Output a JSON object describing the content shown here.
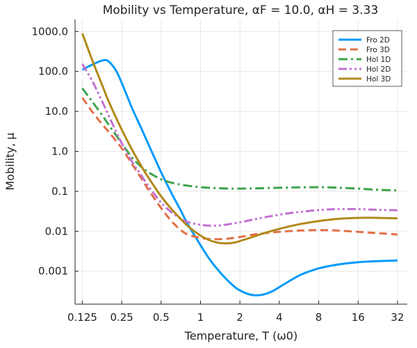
{
  "chart_data": {
    "type": "line",
    "title": "Mobility vs Temperature, αF = 10.0, αH = 3.33",
    "xlabel": "Temperature, T (ω0)",
    "ylabel": "Mobility, μ",
    "xscale": "log2",
    "yscale": "log10",
    "xlim": [
      0.11,
      38
    ],
    "ylim": [
      0.00015,
      2000
    ],
    "grid": true,
    "legend_position": "top-right",
    "x_ticks": [
      {
        "value": 0.125,
        "label": "0.125"
      },
      {
        "value": 0.25,
        "label": "0.25"
      },
      {
        "value": 0.5,
        "label": "0.5"
      },
      {
        "value": 1,
        "label": "1"
      },
      {
        "value": 2,
        "label": "2"
      },
      {
        "value": 4,
        "label": "4"
      },
      {
        "value": 8,
        "label": "8"
      },
      {
        "value": 16,
        "label": "16"
      },
      {
        "value": 32,
        "label": "32"
      }
    ],
    "y_ticks": [
      {
        "value": 0.001,
        "label": "0.001"
      },
      {
        "value": 0.01,
        "label": "0.01"
      },
      {
        "value": 0.1,
        "label": "0.1"
      },
      {
        "value": 1,
        "label": "1.0"
      },
      {
        "value": 10,
        "label": "10.0"
      },
      {
        "value": 100,
        "label": "100.0"
      },
      {
        "value": 1000,
        "label": "1000.0"
      }
    ],
    "series": [
      {
        "name": "Fro 2D",
        "color": "#009AFA",
        "dash": "solid",
        "x": [
          0.125,
          0.15,
          0.18,
          0.2,
          0.23,
          0.27,
          0.3,
          0.35,
          0.4,
          0.5,
          0.6,
          0.7,
          0.8,
          1.0,
          1.2,
          1.5,
          1.8,
          2.0,
          2.3,
          2.6,
          3.0,
          3.5,
          4.0,
          5.0,
          6.0,
          8.0,
          10.0,
          12.0,
          16.0,
          20.0,
          25.0,
          32.0
        ],
        "y": [
          110,
          150,
          190,
          175,
          95,
          28,
          12,
          4.0,
          1.5,
          0.3,
          0.09,
          0.035,
          0.015,
          0.0045,
          0.0018,
          0.00075,
          0.00042,
          0.00033,
          0.00027,
          0.00025,
          0.00026,
          0.00031,
          0.0004,
          0.00062,
          0.00085,
          0.00118,
          0.00138,
          0.00152,
          0.00168,
          0.00176,
          0.00181,
          0.00186
        ]
      },
      {
        "name": "Fro 3D",
        "color": "#E26F46",
        "dash": "dashed",
        "x": [
          0.125,
          0.15,
          0.18,
          0.2,
          0.25,
          0.3,
          0.35,
          0.4,
          0.5,
          0.6,
          0.7,
          0.8,
          1.0,
          1.2,
          1.5,
          2.0,
          2.5,
          3.0,
          4.0,
          5.0,
          6.0,
          8.0,
          10.0,
          12.0,
          16.0,
          20.0,
          25.0,
          32.0
        ],
        "y": [
          22,
          9.5,
          4.5,
          3.0,
          1.2,
          0.48,
          0.22,
          0.11,
          0.038,
          0.018,
          0.011,
          0.0083,
          0.0068,
          0.0064,
          0.0064,
          0.0072,
          0.0082,
          0.0089,
          0.0097,
          0.0102,
          0.0105,
          0.0107,
          0.0106,
          0.0103,
          0.0097,
          0.0092,
          0.0088,
          0.0083
        ]
      },
      {
        "name": "Hol 1D",
        "color": "#3DA44D",
        "dash": "dashdot",
        "x": [
          0.125,
          0.15,
          0.18,
          0.2,
          0.25,
          0.3,
          0.35,
          0.4,
          0.5,
          0.6,
          0.7,
          0.8,
          1.0,
          1.2,
          1.5,
          2.0,
          2.5,
          3.0,
          4.0,
          5.0,
          6.0,
          8.0,
          10.0,
          12.0,
          16.0,
          20.0,
          25.0,
          32.0
        ],
        "y": [
          38,
          17,
          7.5,
          4.5,
          1.6,
          0.7,
          0.42,
          0.3,
          0.2,
          0.165,
          0.148,
          0.138,
          0.127,
          0.122,
          0.118,
          0.117,
          0.118,
          0.12,
          0.123,
          0.125,
          0.126,
          0.127,
          0.125,
          0.122,
          0.117,
          0.112,
          0.108,
          0.105
        ]
      },
      {
        "name": "Hol 2D",
        "color": "#C271D2",
        "dash": "dashdotdot",
        "x": [
          0.125,
          0.15,
          0.18,
          0.2,
          0.25,
          0.3,
          0.35,
          0.4,
          0.5,
          0.6,
          0.7,
          0.8,
          1.0,
          1.2,
          1.4,
          1.6,
          2.0,
          2.5,
          3.0,
          4.0,
          5.0,
          6.0,
          8.0,
          10.0,
          12.0,
          16.0,
          20.0,
          25.0,
          32.0
        ],
        "y": [
          155,
          55,
          16,
          7.5,
          1.6,
          0.55,
          0.26,
          0.135,
          0.052,
          0.03,
          0.021,
          0.017,
          0.0145,
          0.0138,
          0.014,
          0.0148,
          0.0168,
          0.0195,
          0.022,
          0.026,
          0.029,
          0.031,
          0.034,
          0.0355,
          0.036,
          0.0358,
          0.035,
          0.0342,
          0.0335
        ]
      },
      {
        "name": "Hol 3D",
        "color": "#B1891B",
        "dash": "solid",
        "x": [
          0.125,
          0.15,
          0.18,
          0.2,
          0.25,
          0.3,
          0.35,
          0.4,
          0.5,
          0.6,
          0.7,
          0.8,
          1.0,
          1.2,
          1.4,
          1.6,
          1.8,
          2.0,
          2.5,
          3.0,
          4.0,
          5.0,
          6.0,
          8.0,
          10.0,
          12.0,
          16.0,
          20.0,
          25.0,
          32.0
        ],
        "y": [
          900,
          180,
          40,
          17,
          3.5,
          1.1,
          0.45,
          0.22,
          0.075,
          0.036,
          0.021,
          0.0135,
          0.0078,
          0.0058,
          0.0051,
          0.005,
          0.0052,
          0.0057,
          0.0072,
          0.0088,
          0.0115,
          0.0137,
          0.0155,
          0.018,
          0.0197,
          0.0208,
          0.0217,
          0.0218,
          0.0215,
          0.021
        ]
      }
    ]
  }
}
